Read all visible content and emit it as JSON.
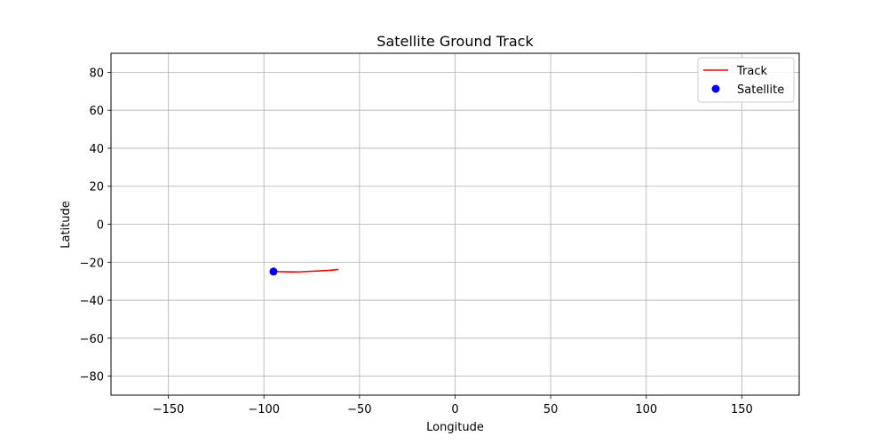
{
  "chart_data": {
    "type": "line",
    "title": "Satellite Ground Track",
    "xlabel": "Longitude",
    "ylabel": "Latitude",
    "xlim": [
      -180,
      180
    ],
    "ylim": [
      -90,
      90
    ],
    "xticks": [
      -150,
      -100,
      -50,
      0,
      50,
      100,
      150
    ],
    "yticks": [
      -80,
      -60,
      -40,
      -20,
      0,
      20,
      40,
      60,
      80
    ],
    "xtick_labels": [
      "−150",
      "−100",
      "−50",
      "0",
      "50",
      "100",
      "150"
    ],
    "ytick_labels": [
      "−80",
      "−60",
      "−40",
      "−20",
      "0",
      "20",
      "40",
      "60",
      "80"
    ],
    "grid": true,
    "legend_position": "top-right",
    "series": [
      {
        "name": "Track",
        "kind": "line",
        "color": "#ff0000",
        "x": [
          -94,
          -90,
          -85,
          -80,
          -75,
          -70,
          -65,
          -61
        ],
        "y": [
          -24.9,
          -25.0,
          -25.1,
          -25.0,
          -24.8,
          -24.5,
          -24.2,
          -23.8
        ]
      },
      {
        "name": "Satellite",
        "kind": "scatter",
        "color": "#0000ff",
        "x": [
          -95
        ],
        "y": [
          -24.9
        ]
      }
    ]
  }
}
